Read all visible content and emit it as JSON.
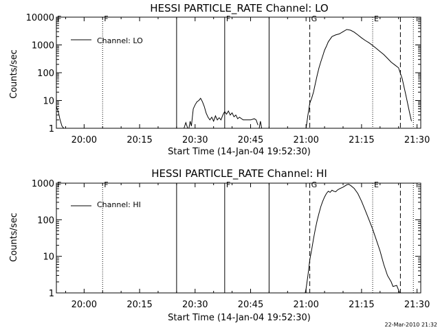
{
  "footer": {
    "timestamp": "22-Mar-2010 21:32"
  },
  "chart_data": [
    {
      "type": "line",
      "title": "HESSI PARTICLE_RATE Channel: LO",
      "xlabel": "Start Time (14-Jan-04 19:52:30)",
      "ylabel": "Counts/sec",
      "y_scale": "log",
      "xlim": [
        "19:52:30",
        "21:31:00"
      ],
      "ylim": [
        1,
        10000
      ],
      "x_ticks": [
        "20:00",
        "20:15",
        "20:30",
        "20:45",
        "21:00",
        "21:15",
        "21:30"
      ],
      "y_ticks": [
        {
          "value": 1,
          "label": "1"
        },
        {
          "value": 10,
          "label": "10"
        },
        {
          "value": 100,
          "label": "100"
        },
        {
          "value": 1000,
          "label": "1000"
        },
        {
          "value": 10000,
          "label": "10000"
        }
      ],
      "legend": {
        "entries": [
          "Channel: LO"
        ],
        "placement": "top-left"
      },
      "series": [
        {
          "name": "Channel: LO",
          "segments": [
            [
              [
                "19:52:30",
                6
              ],
              [
                "19:53:00",
                4
              ],
              [
                "19:53:30",
                2
              ],
              [
                "19:54:00",
                1.2
              ],
              [
                "19:54:30",
                1
              ]
            ],
            [
              [
                "20:27:00",
                1
              ],
              [
                "20:27:30",
                1.6
              ],
              [
                "20:28:00",
                1
              ]
            ],
            [
              [
                "20:28:20",
                1
              ],
              [
                "20:28:40",
                1.8
              ],
              [
                "20:29:00",
                1.2
              ],
              [
                "20:29:30",
                5
              ],
              [
                "20:30:00",
                7
              ],
              [
                "20:30:30",
                9
              ],
              [
                "20:31:00",
                10
              ],
              [
                "20:31:30",
                12
              ],
              [
                "20:32:00",
                9
              ],
              [
                "20:32:30",
                6
              ],
              [
                "20:33:00",
                3.5
              ],
              [
                "20:33:30",
                2.5
              ],
              [
                "20:34:00",
                2
              ],
              [
                "20:34:30",
                2.5
              ],
              [
                "20:35:00",
                1.8
              ],
              [
                "20:35:30",
                2.8
              ],
              [
                "20:36:00",
                2
              ],
              [
                "20:36:30",
                2.4
              ],
              [
                "20:37:00",
                2
              ],
              [
                "20:37:30",
                3
              ],
              [
                "20:38:00",
                4
              ],
              [
                "20:38:30",
                3.2
              ],
              [
                "20:39:00",
                4.2
              ],
              [
                "20:39:30",
                3
              ],
              [
                "20:40:00",
                3.6
              ],
              [
                "20:40:30",
                2.6
              ],
              [
                "20:41:00",
                3
              ],
              [
                "20:41:30",
                2.2
              ],
              [
                "20:42:00",
                2.5
              ],
              [
                "20:43:00",
                2
              ],
              [
                "20:44:00",
                2
              ],
              [
                "20:45:00",
                2
              ],
              [
                "20:46:00",
                2.2
              ],
              [
                "20:46:30",
                2
              ],
              [
                "20:47:00",
                1.3
              ]
            ],
            [
              [
                "20:47:20",
                1
              ],
              [
                "20:47:40",
                1.8
              ],
              [
                "20:48:00",
                1
              ]
            ],
            [
              [
                "21:00:00",
                1
              ],
              [
                "21:00:30",
                3
              ],
              [
                "21:01:00",
                8
              ],
              [
                "21:01:30",
                12
              ],
              [
                "21:02:00",
                20
              ],
              [
                "21:02:30",
                40
              ],
              [
                "21:03:00",
                80
              ],
              [
                "21:03:30",
                150
              ],
              [
                "21:04:00",
                250
              ],
              [
                "21:04:30",
                400
              ],
              [
                "21:05:00",
                650
              ],
              [
                "21:05:30",
                900
              ],
              [
                "21:06:00",
                1300
              ],
              [
                "21:07:00",
                2000
              ],
              [
                "21:08:00",
                2300
              ],
              [
                "21:09:00",
                2500
              ],
              [
                "21:10:00",
                3000
              ],
              [
                "21:11:00",
                3600
              ],
              [
                "21:12:00",
                3400
              ],
              [
                "21:13:00",
                2900
              ],
              [
                "21:14:00",
                2300
              ],
              [
                "21:15:00",
                1800
              ],
              [
                "21:16:00",
                1450
              ],
              [
                "21:17:00",
                1200
              ],
              [
                "21:18:00",
                950
              ],
              [
                "21:19:00",
                750
              ],
              [
                "21:20:00",
                580
              ],
              [
                "21:21:00",
                450
              ],
              [
                "21:22:00",
                330
              ],
              [
                "21:23:00",
                240
              ],
              [
                "21:24:00",
                190
              ],
              [
                "21:25:00",
                150
              ],
              [
                "21:26:00",
                60
              ],
              [
                "21:27:00",
                15
              ],
              [
                "21:28:00",
                3.5
              ],
              [
                "21:28:30",
                1.8
              ]
            ]
          ]
        }
      ],
      "vlines": [
        {
          "x": "20:05:00",
          "style": "dotted",
          "label": "F"
        },
        {
          "x": "20:25:00",
          "style": "solid",
          "label": ""
        },
        {
          "x": "20:38:00",
          "style": "solid",
          "label": "F"
        },
        {
          "x": "20:50:00",
          "style": "solid",
          "label": ""
        },
        {
          "x": "21:01:00",
          "style": "dashed",
          "label": "G"
        },
        {
          "x": "21:18:00",
          "style": "dotted",
          "label": "E"
        },
        {
          "x": "21:25:30",
          "style": "dashed",
          "label": ""
        },
        {
          "x": "21:29:00",
          "style": "dotted",
          "label": ""
        }
      ],
      "corner_label": "F"
    },
    {
      "type": "line",
      "title": "HESSI PARTICLE_RATE Channel: HI",
      "xlabel": "Start Time (14-Jan-04 19:52:30)",
      "ylabel": "Counts/sec",
      "y_scale": "log",
      "xlim": [
        "19:52:30",
        "21:31:00"
      ],
      "ylim": [
        1,
        1000
      ],
      "x_ticks": [
        "20:00",
        "20:15",
        "20:30",
        "20:45",
        "21:00",
        "21:15",
        "21:30"
      ],
      "y_ticks": [
        {
          "value": 1,
          "label": "1"
        },
        {
          "value": 10,
          "label": "10"
        },
        {
          "value": 100,
          "label": "100"
        },
        {
          "value": 1000,
          "label": "1000"
        }
      ],
      "legend": {
        "entries": [
          "Channel: HI"
        ],
        "placement": "top-left"
      },
      "series": [
        {
          "name": "Channel: HI",
          "segments": [
            [
              [
                "20:59:45",
                1
              ],
              [
                "21:00:00",
                1.3
              ],
              [
                "21:00:30",
                3
              ],
              [
                "21:01:00",
                8
              ],
              [
                "21:01:30",
                15
              ],
              [
                "21:02:00",
                30
              ],
              [
                "21:02:30",
                55
              ],
              [
                "21:03:00",
                95
              ],
              [
                "21:03:30",
                150
              ],
              [
                "21:04:00",
                230
              ],
              [
                "21:04:30",
                320
              ],
              [
                "21:05:00",
                420
              ],
              [
                "21:05:30",
                520
              ],
              [
                "21:06:00",
                600
              ],
              [
                "21:06:30",
                560
              ],
              [
                "21:07:00",
                640
              ],
              [
                "21:07:30",
                600
              ],
              [
                "21:08:00",
                580
              ],
              [
                "21:08:30",
                650
              ],
              [
                "21:09:00",
                700
              ],
              [
                "21:10:00",
                780
              ],
              [
                "21:11:00",
                900
              ],
              [
                "21:11:30",
                930
              ],
              [
                "21:12:00",
                870
              ],
              [
                "21:13:00",
                720
              ],
              [
                "21:14:00",
                520
              ],
              [
                "21:15:00",
                320
              ],
              [
                "21:16:00",
                180
              ],
              [
                "21:17:00",
                100
              ],
              [
                "21:18:00",
                55
              ],
              [
                "21:19:00",
                28
              ],
              [
                "21:20:00",
                14
              ],
              [
                "21:21:00",
                6
              ],
              [
                "21:22:00",
                3
              ],
              [
                "21:23:00",
                2
              ],
              [
                "21:23:30",
                1.5
              ],
              [
                "21:24:30",
                1.6
              ],
              [
                "21:25:00",
                1.2
              ],
              [
                "21:25:20",
                1
              ]
            ]
          ]
        }
      ],
      "vlines": [
        {
          "x": "20:05:00",
          "style": "dotted",
          "label": "F"
        },
        {
          "x": "20:25:00",
          "style": "solid",
          "label": ""
        },
        {
          "x": "20:38:00",
          "style": "solid",
          "label": "F"
        },
        {
          "x": "20:50:00",
          "style": "solid",
          "label": ""
        },
        {
          "x": "21:01:00",
          "style": "dashed",
          "label": "G"
        },
        {
          "x": "21:18:00",
          "style": "dotted",
          "label": "E"
        },
        {
          "x": "21:25:30",
          "style": "dashed",
          "label": ""
        },
        {
          "x": "21:29:00",
          "style": "dotted",
          "label": ""
        }
      ],
      "corner_label": "F"
    }
  ]
}
